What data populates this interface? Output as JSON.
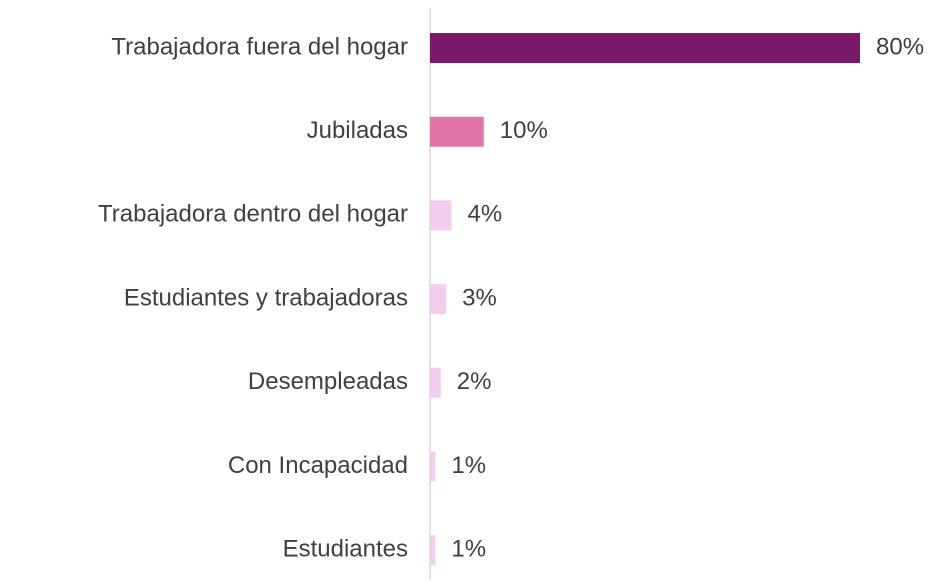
{
  "chart_data": {
    "type": "bar",
    "orientation": "horizontal",
    "categories": [
      "Trabajadora fuera del hogar",
      "Jubiladas",
      "Trabajadora dentro del hogar",
      "Estudiantes y trabajadoras",
      "Desempleadas",
      "Con Incapacidad",
      "Estudiantes"
    ],
    "values": [
      80,
      10,
      4,
      3,
      2,
      1,
      1
    ],
    "value_labels": [
      "80%",
      "10%",
      "4%",
      "3%",
      "2%",
      "1%",
      "1%"
    ],
    "colors": [
      "#7b1a6b",
      "#e075a8",
      "#f2cdee",
      "#f2cdee",
      "#f2cdee",
      "#f2cdee",
      "#f2cdee"
    ]
  }
}
